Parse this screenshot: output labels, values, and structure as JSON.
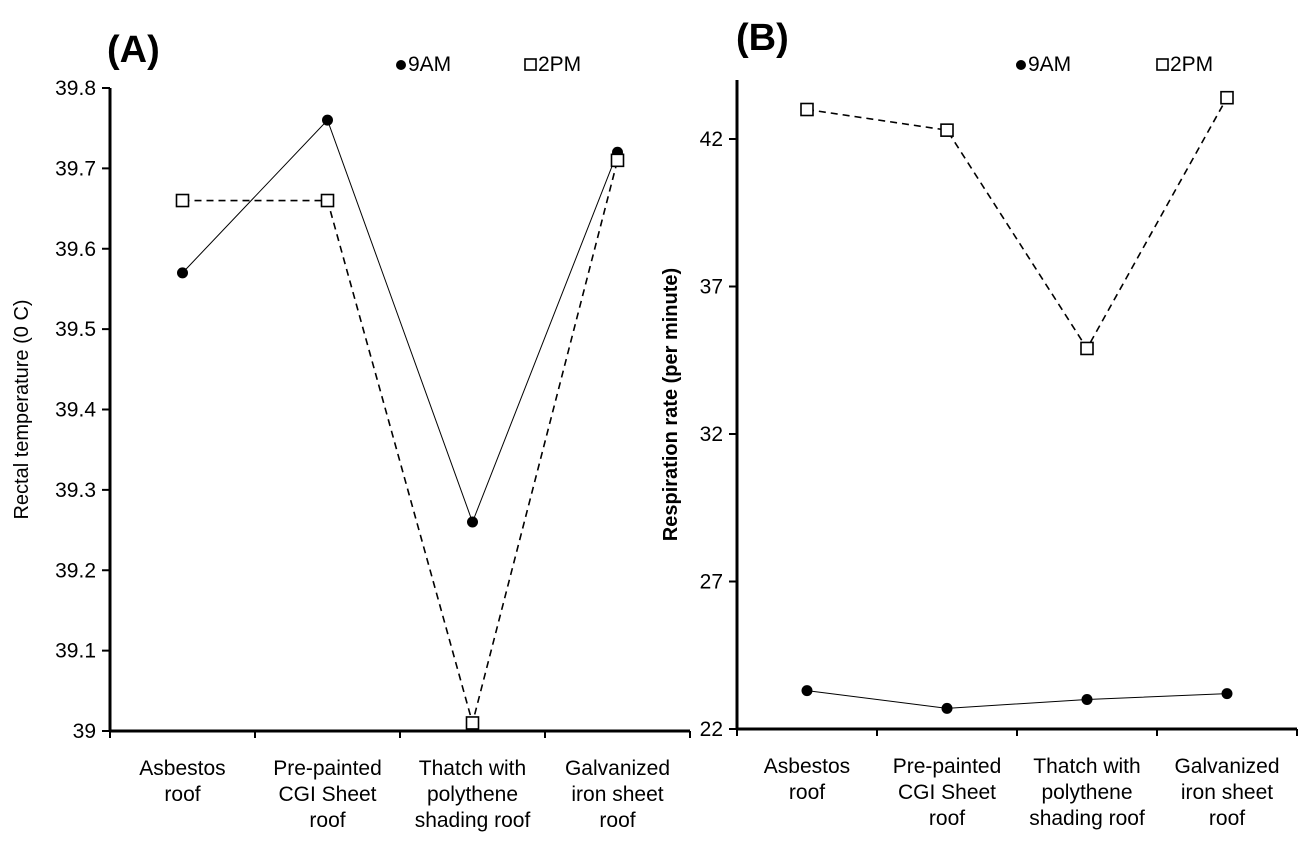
{
  "chart_data": [
    {
      "type": "line",
      "panel_label": "(A)",
      "title": "",
      "xlabel": "",
      "ylabel": "Rectal temperature (0 C)",
      "ylim": [
        39,
        39.8
      ],
      "yticks": [
        "39",
        "39.1",
        "39.2",
        "39.3",
        "39.4",
        "39.5",
        "39.6",
        "39.7",
        "39.8"
      ],
      "categories": [
        [
          "Asbestos",
          "roof"
        ],
        [
          "Pre-painted",
          "CGI Sheet",
          "roof"
        ],
        [
          "Thatch with",
          "polythene",
          "shading roof"
        ],
        [
          "Galvanized",
          "iron sheet",
          "roof"
        ]
      ],
      "legend_position": "top-right",
      "grid": false,
      "series": [
        {
          "name": "9AM",
          "marker": "filled-circle",
          "line": "solid",
          "values": [
            39.57,
            39.76,
            39.26,
            39.72
          ]
        },
        {
          "name": "2PM",
          "marker": "open-square",
          "line": "dashed",
          "values": [
            39.66,
            39.66,
            39.01,
            39.71
          ]
        }
      ]
    },
    {
      "type": "line",
      "panel_label": "(B)",
      "title": "",
      "xlabel": "",
      "ylabel": "Respiration rate (per minute)",
      "ylim": [
        22,
        44
      ],
      "yticks": [
        "22",
        "27",
        "32",
        "37",
        "42"
      ],
      "categories": [
        [
          "Asbestos",
          "roof"
        ],
        [
          "Pre-painted",
          "CGI Sheet",
          "roof"
        ],
        [
          "Thatch with",
          "polythene",
          "shading roof"
        ],
        [
          "Galvanized",
          "iron sheet",
          "roof"
        ]
      ],
      "legend_position": "top-right",
      "grid": false,
      "series": [
        {
          "name": "9AM",
          "marker": "filled-circle",
          "line": "solid",
          "values": [
            23.3,
            22.7,
            23.0,
            23.2
          ]
        },
        {
          "name": "2PM",
          "marker": "open-square",
          "line": "dashed",
          "values": [
            43.0,
            42.3,
            34.9,
            43.4
          ]
        }
      ]
    }
  ]
}
